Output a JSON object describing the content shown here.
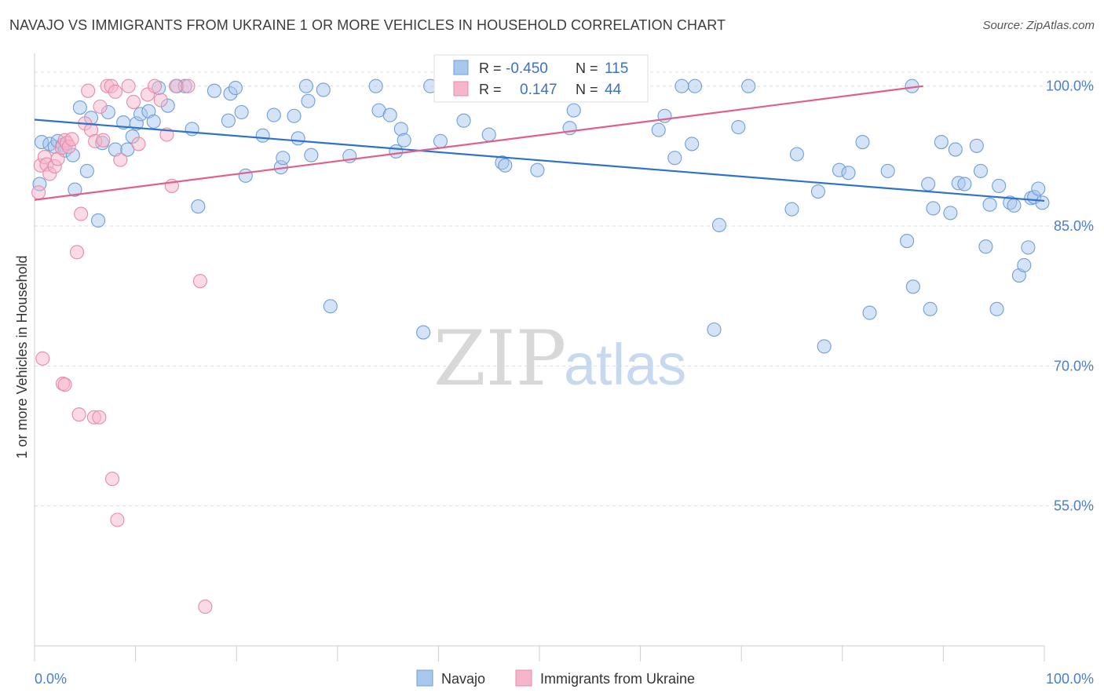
{
  "title": "NAVAJO VS IMMIGRANTS FROM UKRAINE 1 OR MORE VEHICLES IN HOUSEHOLD CORRELATION CHART",
  "source": "Source: ZipAtlas.com",
  "watermark": {
    "zip": "ZIP",
    "atlas": "atlas"
  },
  "colors": {
    "navajo_fill": "#a9c8ee",
    "navajo_stroke": "#6f9fd8",
    "navajo_line": "#2f72cc",
    "ukraine_fill": "#f5b6cb",
    "ukraine_stroke": "#e88aa9",
    "ukraine_line": "#e0608a",
    "grid": "#dcdcdc",
    "tick_text": "#4a7fc8"
  },
  "stats": {
    "r_label": "R =",
    "n_label": "N =",
    "rows": [
      {
        "series": "Navajo",
        "r": "-0.450",
        "n": "115"
      },
      {
        "series": "Immigrants from Ukraine",
        "r": "0.147",
        "n": "44"
      }
    ]
  },
  "chart_data": {
    "type": "scatter",
    "title": "NAVAJO VS IMMIGRANTS FROM UKRAINE 1 OR MORE VEHICLES IN HOUSEHOLD CORRELATION CHART",
    "xlabel": "",
    "ylabel": "1 or more Vehicles in Household",
    "xlim": [
      0,
      100
    ],
    "ylim": [
      40,
      102.5
    ],
    "x_tick_labels": [
      "0.0%",
      "100.0%"
    ],
    "y_ticks": [
      100,
      85,
      70,
      55
    ],
    "y_tick_labels": [
      "100.0%",
      "85.0%",
      "70.0%",
      "55.0%"
    ],
    "grid": true,
    "legend_position": "bottom-center",
    "series": [
      {
        "name": "Navajo",
        "trend": {
          "x": [
            0,
            100
          ],
          "y": [
            96.4,
            87.7
          ]
        },
        "points": [
          [
            0.5,
            89.5
          ],
          [
            0.7,
            94.0
          ],
          [
            1.5,
            93.8
          ],
          [
            2.0,
            93.5
          ],
          [
            2.3,
            94.1
          ],
          [
            2.8,
            93.7
          ],
          [
            3.0,
            93.1
          ],
          [
            3.8,
            92.6
          ],
          [
            4.0,
            88.9
          ],
          [
            4.5,
            97.7
          ],
          [
            5.2,
            90.9
          ],
          [
            5.6,
            96.6
          ],
          [
            6.3,
            85.6
          ],
          [
            6.7,
            93.9
          ],
          [
            7.3,
            97.2
          ],
          [
            8.0,
            93.2
          ],
          [
            8.8,
            96.1
          ],
          [
            9.2,
            93.2
          ],
          [
            9.7,
            94.6
          ],
          [
            10.1,
            96.0
          ],
          [
            10.5,
            97.0
          ],
          [
            11.3,
            97.3
          ],
          [
            11.8,
            96.2
          ],
          [
            12.3,
            99.8
          ],
          [
            13.2,
            97.9
          ],
          [
            14.1,
            100.0
          ],
          [
            14.9,
            100.0
          ],
          [
            15.6,
            95.4
          ],
          [
            16.2,
            87.1
          ],
          [
            17.8,
            99.5
          ],
          [
            19.2,
            96.3
          ],
          [
            19.4,
            99.2
          ],
          [
            19.9,
            99.8
          ],
          [
            20.5,
            97.2
          ],
          [
            20.9,
            90.4
          ],
          [
            22.6,
            94.7
          ],
          [
            23.7,
            96.9
          ],
          [
            24.4,
            91.3
          ],
          [
            24.6,
            92.3
          ],
          [
            25.7,
            96.8
          ],
          [
            26.1,
            94.4
          ],
          [
            26.9,
            100.0
          ],
          [
            27.1,
            98.4
          ],
          [
            27.4,
            92.6
          ],
          [
            28.6,
            99.6
          ],
          [
            29.3,
            76.4
          ],
          [
            31.2,
            92.5
          ],
          [
            33.8,
            100.0
          ],
          [
            34.1,
            97.4
          ],
          [
            35.2,
            96.9
          ],
          [
            35.8,
            93.0
          ],
          [
            36.3,
            95.4
          ],
          [
            36.6,
            94.2
          ],
          [
            38.5,
            73.6
          ],
          [
            39.2,
            100.0
          ],
          [
            40.2,
            94.1
          ],
          [
            40.7,
            100.0
          ],
          [
            42.5,
            96.3
          ],
          [
            45.0,
            94.8
          ],
          [
            46.3,
            91.8
          ],
          [
            46.6,
            91.5
          ],
          [
            49.1,
            100.0
          ],
          [
            49.8,
            91.0
          ],
          [
            53.0,
            95.5
          ],
          [
            53.4,
            97.4
          ],
          [
            54.1,
            100.0
          ],
          [
            55.5,
            100.0
          ],
          [
            56.9,
            100.0
          ],
          [
            57.4,
            100.0
          ],
          [
            59.2,
            100.0
          ],
          [
            61.8,
            95.3
          ],
          [
            62.4,
            96.8
          ],
          [
            63.4,
            92.3
          ],
          [
            64.1,
            100.0
          ],
          [
            65.1,
            93.8
          ],
          [
            65.4,
            100.0
          ],
          [
            67.3,
            73.9
          ],
          [
            67.8,
            85.1
          ],
          [
            69.7,
            95.6
          ],
          [
            70.7,
            100.0
          ],
          [
            75.0,
            86.8
          ],
          [
            75.5,
            92.7
          ],
          [
            77.6,
            88.7
          ],
          [
            78.2,
            72.1
          ],
          [
            79.7,
            91.0
          ],
          [
            80.6,
            90.7
          ],
          [
            82.0,
            94.0
          ],
          [
            82.7,
            75.7
          ],
          [
            84.5,
            90.9
          ],
          [
            86.4,
            83.4
          ],
          [
            86.9,
            100.0
          ],
          [
            87.0,
            78.5
          ],
          [
            88.5,
            89.5
          ],
          [
            88.7,
            76.1
          ],
          [
            89.0,
            86.9
          ],
          [
            89.8,
            94.0
          ],
          [
            90.7,
            86.4
          ],
          [
            91.2,
            93.2
          ],
          [
            91.5,
            89.6
          ],
          [
            92.1,
            89.5
          ],
          [
            93.3,
            93.6
          ],
          [
            93.7,
            90.9
          ],
          [
            94.2,
            82.8
          ],
          [
            94.6,
            87.3
          ],
          [
            95.3,
            76.1
          ],
          [
            95.5,
            89.3
          ],
          [
            96.6,
            87.5
          ],
          [
            97.0,
            87.2
          ],
          [
            97.5,
            79.7
          ],
          [
            98.0,
            80.8
          ],
          [
            98.4,
            82.7
          ],
          [
            98.7,
            88.0
          ],
          [
            99.0,
            88.1
          ],
          [
            99.4,
            89.0
          ],
          [
            99.8,
            87.5
          ]
        ]
      },
      {
        "name": "Immigrants from Ukraine",
        "trend": {
          "x": [
            0,
            88
          ],
          "y": [
            87.8,
            100.0
          ]
        },
        "points": [
          [
            0.4,
            88.6
          ],
          [
            0.6,
            91.5
          ],
          [
            1.0,
            92.4
          ],
          [
            1.2,
            91.6
          ],
          [
            1.5,
            90.6
          ],
          [
            2.0,
            91.4
          ],
          [
            2.3,
            92.2
          ],
          [
            2.7,
            93.4
          ],
          [
            3.0,
            94.2
          ],
          [
            3.2,
            93.9
          ],
          [
            3.4,
            93.5
          ],
          [
            3.7,
            94.3
          ],
          [
            4.2,
            82.2
          ],
          [
            4.6,
            86.3
          ],
          [
            5.0,
            96.0
          ],
          [
            5.3,
            99.5
          ],
          [
            5.6,
            95.3
          ],
          [
            6.0,
            94.1
          ],
          [
            6.5,
            97.8
          ],
          [
            6.8,
            94.2
          ],
          [
            7.2,
            100.0
          ],
          [
            7.6,
            100.0
          ],
          [
            8.0,
            99.4
          ],
          [
            8.5,
            92.1
          ],
          [
            9.3,
            100.0
          ],
          [
            9.8,
            98.3
          ],
          [
            10.3,
            93.8
          ],
          [
            11.2,
            99.1
          ],
          [
            11.9,
            100.0
          ],
          [
            12.5,
            98.5
          ],
          [
            13.1,
            94.8
          ],
          [
            13.6,
            89.3
          ],
          [
            14.0,
            100.0
          ],
          [
            15.2,
            100.0
          ],
          [
            16.4,
            79.1
          ],
          [
            0.8,
            70.8
          ],
          [
            2.8,
            68.1
          ],
          [
            3.0,
            68.0
          ],
          [
            4.4,
            64.8
          ],
          [
            5.9,
            64.5
          ],
          [
            6.4,
            64.5
          ],
          [
            7.7,
            57.9
          ],
          [
            8.2,
            53.5
          ],
          [
            16.9,
            44.2
          ]
        ]
      }
    ]
  },
  "legend": {
    "items": [
      {
        "label": "Navajo"
      },
      {
        "label": "Immigrants from Ukraine"
      }
    ]
  }
}
